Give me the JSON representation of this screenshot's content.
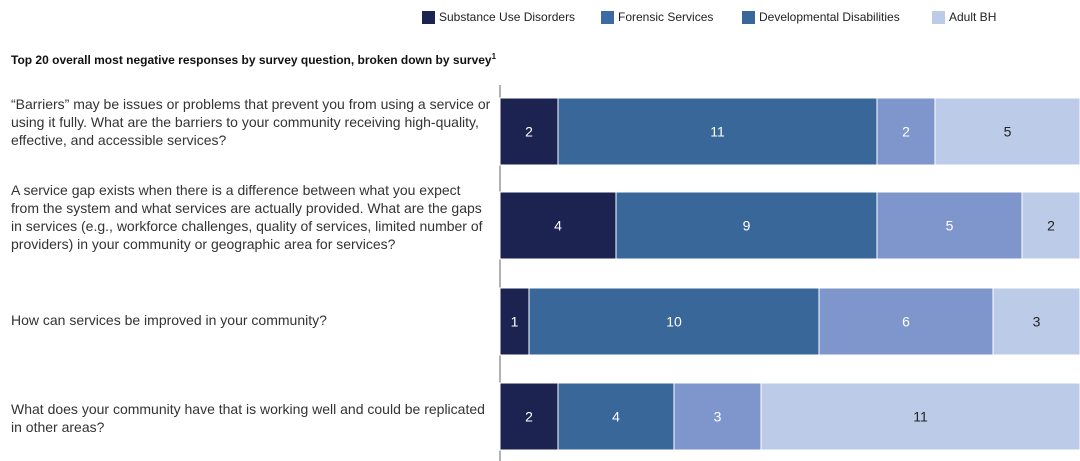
{
  "chart_data": {
    "type": "bar",
    "orientation": "horizontal",
    "stacked": true,
    "title": "Top 20 overall most negative responses by survey question, broken down by survey",
    "title_footnote": "1",
    "legend_placement": "top-right",
    "categories": [
      "“Barriers” may be issues or problems that prevent you from using a service or using it fully. What are the barriers to your community receiving high-quality, effective, and accessible services?",
      "A service gap exists when there is a difference between what you expect from the system and what services are actually provided. What are the gaps in services (e.g., workforce challenges, quality of services, limited number of providers) in your community or geographic area for services?",
      "How can services be improved in your community?",
      "What does your community have that is working well and could be replicated in other areas?"
    ],
    "series": [
      {
        "name": "Substance Use Disorders",
        "color": "#1c2351",
        "values": [
          2,
          4,
          1,
          2
        ]
      },
      {
        "name": "Forensic Services",
        "color": "#3d6aa4",
        "values": [
          0,
          0,
          0,
          0
        ]
      },
      {
        "name": "Developmental Disabilities",
        "color": "#3a6799",
        "values": [
          11,
          9,
          10,
          4
        ]
      },
      {
        "name": "",
        "color": "#7f96cc",
        "values": [
          2,
          5,
          6,
          3
        ]
      },
      {
        "name": "Adult BH",
        "color": "#bccbe8",
        "values": [
          5,
          2,
          3,
          11
        ]
      }
    ],
    "xlim": [
      0,
      20
    ],
    "grid": false
  }
}
